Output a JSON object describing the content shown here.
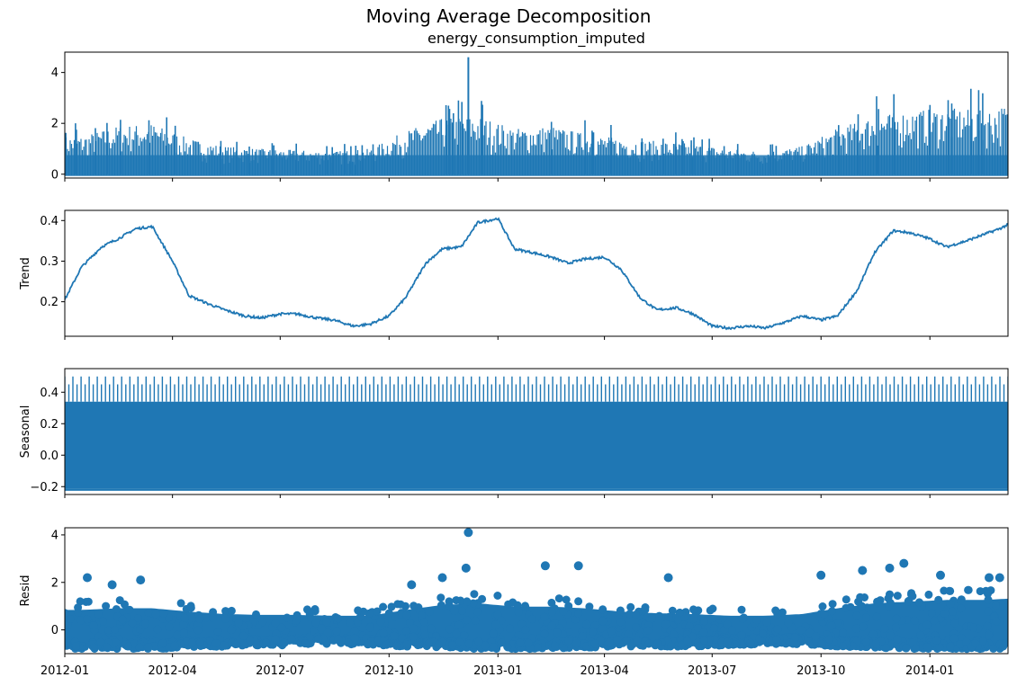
{
  "title": "Moving Average Decomposition",
  "colors": {
    "series": "#1f77b4",
    "axis": "#000000",
    "background": "#ffffff"
  },
  "chart_data": [
    {
      "type": "line",
      "panel": "observed",
      "title": "energy_consumption_imputed",
      "ylabel": "",
      "ylim": [
        -0.15,
        4.8
      ],
      "yticks": [
        0,
        2,
        4
      ],
      "yticklabels": [
        "0",
        "2",
        "4"
      ],
      "x": [
        "2012-01",
        "2012-02",
        "2012-03",
        "2012-04",
        "2012-05",
        "2012-06",
        "2012-07",
        "2012-08",
        "2012-09",
        "2012-10",
        "2012-11",
        "2012-12",
        "2013-01",
        "2013-02",
        "2013-03",
        "2013-04",
        "2013-05",
        "2013-06",
        "2013-07",
        "2013-08",
        "2013-09",
        "2013-10",
        "2013-11",
        "2013-12",
        "2014-01",
        "2014-02",
        "2014-03"
      ],
      "typical_peak": [
        1.5,
        1.9,
        2.0,
        1.4,
        1.1,
        1.0,
        0.95,
        0.9,
        1.0,
        1.7,
        2.2,
        2.3,
        1.8,
        1.9,
        1.6,
        1.4,
        1.3,
        1.2,
        1.0,
        0.9,
        1.1,
        1.8,
        2.3,
        2.5,
        2.6,
        2.5,
        2.8
      ],
      "max_spike": {
        "date": "2012-12-07",
        "value": 4.6
      }
    },
    {
      "type": "line",
      "panel": "trend",
      "ylabel": "Trend",
      "ylim": [
        0.115,
        0.425
      ],
      "yticks": [
        0.2,
        0.3,
        0.4
      ],
      "yticklabels": [
        "0.2",
        "0.3",
        "0.4"
      ],
      "x": [
        "2012-01-01",
        "2012-01-15",
        "2012-02-01",
        "2012-02-15",
        "2012-03-01",
        "2012-03-15",
        "2012-04-01",
        "2012-04-15",
        "2012-05-01",
        "2012-05-15",
        "2012-06-01",
        "2012-06-15",
        "2012-07-01",
        "2012-07-15",
        "2012-08-01",
        "2012-08-15",
        "2012-09-01",
        "2012-09-15",
        "2012-10-01",
        "2012-10-15",
        "2012-11-01",
        "2012-11-15",
        "2012-12-01",
        "2012-12-15",
        "2013-01-01",
        "2013-01-15",
        "2013-02-01",
        "2013-02-15",
        "2013-03-01",
        "2013-03-15",
        "2013-04-01",
        "2013-04-15",
        "2013-05-01",
        "2013-05-15",
        "2013-06-01",
        "2013-06-15",
        "2013-07-01",
        "2013-07-15",
        "2013-08-01",
        "2013-08-15",
        "2013-09-01",
        "2013-09-15",
        "2013-10-01",
        "2013-10-15",
        "2013-11-01",
        "2013-11-15",
        "2013-12-01",
        "2013-12-15",
        "2014-01-01",
        "2014-01-15",
        "2014-02-01",
        "2014-02-15",
        "2014-03-01",
        "2014-03-15"
      ],
      "values": [
        0.205,
        0.285,
        0.335,
        0.355,
        0.38,
        0.385,
        0.3,
        0.215,
        0.195,
        0.18,
        0.165,
        0.16,
        0.17,
        0.17,
        0.16,
        0.155,
        0.14,
        0.145,
        0.165,
        0.21,
        0.295,
        0.33,
        0.335,
        0.395,
        0.405,
        0.33,
        0.32,
        0.31,
        0.295,
        0.305,
        0.31,
        0.28,
        0.21,
        0.18,
        0.185,
        0.17,
        0.14,
        0.135,
        0.14,
        0.135,
        0.15,
        0.165,
        0.155,
        0.165,
        0.23,
        0.32,
        0.375,
        0.37,
        0.355,
        0.335,
        0.35,
        0.365,
        0.38,
        0.4
      ]
    },
    {
      "type": "area",
      "panel": "seasonal",
      "ylabel": "Seasonal",
      "ylim": [
        -0.25,
        0.55
      ],
      "yticks": [
        -0.2,
        0.0,
        0.2,
        0.4
      ],
      "yticklabels": [
        "−0.2",
        "0.0",
        "0.2",
        "0.4"
      ],
      "band_min": -0.215,
      "band_max_common": 0.34,
      "spike_top": 0.5,
      "period": "daily"
    },
    {
      "type": "scatter",
      "panel": "resid",
      "ylabel": "Resid",
      "ylim": [
        -1.0,
        4.3
      ],
      "yticks": [
        0,
        2,
        4
      ],
      "yticklabels": [
        "0",
        "2",
        "4"
      ],
      "x": [
        "2012-01",
        "2012-02",
        "2012-03",
        "2012-04",
        "2012-05",
        "2012-06",
        "2012-07",
        "2012-08",
        "2012-09",
        "2012-10",
        "2012-11",
        "2012-12",
        "2013-01",
        "2013-02",
        "2013-03",
        "2013-04",
        "2013-05",
        "2013-06",
        "2013-07",
        "2013-08",
        "2013-09",
        "2013-10",
        "2013-11",
        "2013-12",
        "2014-01",
        "2014-02",
        "2014-03"
      ],
      "band_low": [
        -0.8,
        -0.8,
        -0.8,
        -0.75,
        -0.7,
        -0.65,
        -0.65,
        -0.6,
        -0.65,
        -0.7,
        -0.75,
        -0.8,
        -0.8,
        -0.8,
        -0.75,
        -0.7,
        -0.7,
        -0.7,
        -0.65,
        -0.6,
        -0.6,
        -0.7,
        -0.75,
        -0.8,
        -0.8,
        -0.8,
        -0.8
      ],
      "band_high": [
        1.2,
        1.3,
        1.3,
        1.1,
        0.95,
        0.9,
        0.9,
        0.85,
        0.85,
        1.2,
        1.5,
        1.6,
        1.4,
        1.4,
        1.3,
        1.1,
        1.0,
        0.95,
        0.85,
        0.85,
        0.95,
        1.3,
        1.6,
        1.7,
        1.8,
        1.8,
        1.9
      ],
      "outliers": [
        {
          "x": "2012-01-20",
          "y": 2.2
        },
        {
          "x": "2012-02-10",
          "y": 1.9
        },
        {
          "x": "2012-03-05",
          "y": 2.1
        },
        {
          "x": "2012-10-20",
          "y": 1.9
        },
        {
          "x": "2012-11-15",
          "y": 2.2
        },
        {
          "x": "2012-12-07",
          "y": 4.1
        },
        {
          "x": "2012-12-05",
          "y": 2.6
        },
        {
          "x": "2013-02-10",
          "y": 2.7
        },
        {
          "x": "2013-03-10",
          "y": 2.7
        },
        {
          "x": "2013-05-25",
          "y": 2.2
        },
        {
          "x": "2013-10-01",
          "y": 2.3
        },
        {
          "x": "2013-11-05",
          "y": 2.5
        },
        {
          "x": "2013-11-28",
          "y": 2.6
        },
        {
          "x": "2013-12-10",
          "y": 2.8
        },
        {
          "x": "2014-01-10",
          "y": 2.3
        },
        {
          "x": "2014-02-20",
          "y": 2.2
        },
        {
          "x": "2014-03-01",
          "y": 2.2
        }
      ]
    }
  ],
  "xaxis": {
    "range": [
      "2012-01-01",
      "2014-03-08"
    ],
    "ticks": [
      "2012-01-01",
      "2012-04-01",
      "2012-07-01",
      "2012-10-01",
      "2013-01-01",
      "2013-04-01",
      "2013-07-01",
      "2013-10-01",
      "2014-01-01"
    ],
    "ticklabels": [
      "2012-01",
      "2012-04",
      "2012-07",
      "2012-10",
      "2013-01",
      "2013-04",
      "2013-07",
      "2013-10",
      "2014-01"
    ]
  }
}
